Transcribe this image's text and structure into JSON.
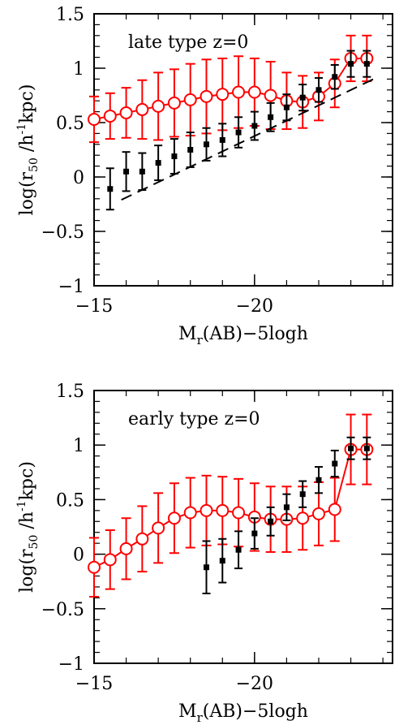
{
  "chart_data": [
    {
      "type": "line",
      "annotation": "late type   z=0",
      "xlabel_main": "M",
      "xlabel_sub": "r",
      "xlabel_rest": "(AB)−5logh",
      "ylabel_pre": "log(r",
      "ylabel_sub": "50",
      "ylabel_post": " /h",
      "ylabel_sup": "-1",
      "ylabel_end": "kpc)",
      "xlim": [
        -15,
        -24.3
      ],
      "ylim": [
        -1,
        1.5
      ],
      "xticks": [
        -15,
        -20
      ],
      "xtick_labels": [
        "−15",
        "−20"
      ],
      "yticks": [
        -1,
        -0.5,
        0,
        0.5,
        1,
        1.5
      ],
      "ytick_labels": [
        "−1",
        "−0.5",
        "0",
        "0.5",
        "1",
        "1.5"
      ],
      "series": [
        {
          "style": "red-circles-line",
          "color": "#ff0000",
          "x": [
            -15.0,
            -15.5,
            -16.0,
            -16.5,
            -17.0,
            -17.5,
            -18.0,
            -18.5,
            -19.0,
            -19.5,
            -20.0,
            -20.5,
            -21.0,
            -21.5,
            -22.0,
            -22.5,
            -23.0,
            -23.5
          ],
          "y": [
            0.53,
            0.56,
            0.59,
            0.62,
            0.65,
            0.68,
            0.71,
            0.74,
            0.76,
            0.78,
            0.78,
            0.75,
            0.7,
            0.69,
            0.74,
            0.86,
            1.09,
            1.09
          ],
          "err": [
            0.21,
            0.21,
            0.23,
            0.27,
            0.31,
            0.31,
            0.33,
            0.34,
            0.33,
            0.33,
            0.31,
            0.31,
            0.26,
            0.24,
            0.22,
            0.22,
            0.21,
            0.21
          ]
        },
        {
          "style": "black-squares",
          "color": "#000000",
          "x": [
            -15.5,
            -16.0,
            -16.5,
            -17.0,
            -17.5,
            -18.0,
            -18.5,
            -19.0,
            -19.5,
            -20.0,
            -20.5,
            -21.0,
            -21.5,
            -22.0,
            -22.5,
            -23.0,
            -23.5
          ],
          "y": [
            -0.11,
            0.05,
            0.05,
            0.13,
            0.19,
            0.25,
            0.3,
            0.34,
            0.41,
            0.47,
            0.55,
            0.64,
            0.73,
            0.8,
            0.92,
            1.04,
            1.04
          ],
          "err": [
            0.19,
            0.18,
            0.17,
            0.16,
            0.16,
            0.16,
            0.15,
            0.15,
            0.14,
            0.13,
            0.13,
            0.12,
            0.12,
            0.11,
            0.11,
            0.12,
            0.12
          ]
        },
        {
          "style": "black-dashed",
          "color": "#000000",
          "x": [
            -15.85,
            -23.85
          ],
          "y": [
            -0.21,
            0.92
          ]
        }
      ]
    },
    {
      "type": "line",
      "annotation": "early type   z=0",
      "xlabel_main": "M",
      "xlabel_sub": "r",
      "xlabel_rest": "(AB)−5logh",
      "ylabel_pre": "log(r",
      "ylabel_sub": "50",
      "ylabel_post": " /h",
      "ylabel_sup": "-1",
      "ylabel_end": "kpc)",
      "xlim": [
        -15,
        -24.3
      ],
      "ylim": [
        -1,
        1.5
      ],
      "xticks": [
        -15,
        -20
      ],
      "xtick_labels": [
        "−15",
        "−20"
      ],
      "yticks": [
        -1,
        -0.5,
        0,
        0.5,
        1,
        1.5
      ],
      "ytick_labels": [
        "−1",
        "−0.5",
        "0",
        "0.5",
        "1",
        "1.5"
      ],
      "series": [
        {
          "style": "red-circles-line",
          "color": "#ff0000",
          "x": [
            -15.0,
            -15.5,
            -16.0,
            -16.5,
            -17.0,
            -17.5,
            -18.0,
            -18.5,
            -19.0,
            -19.5,
            -20.0,
            -20.5,
            -21.0,
            -21.5,
            -22.0,
            -22.5,
            -23.0,
            -23.5
          ],
          "y": [
            -0.12,
            -0.05,
            0.05,
            0.14,
            0.24,
            0.33,
            0.38,
            0.4,
            0.4,
            0.38,
            0.34,
            0.32,
            0.32,
            0.33,
            0.37,
            0.41,
            0.96,
            0.96
          ],
          "err": [
            0.27,
            0.27,
            0.28,
            0.3,
            0.32,
            0.32,
            0.32,
            0.32,
            0.31,
            0.31,
            0.31,
            0.3,
            0.3,
            0.29,
            0.29,
            0.29,
            0.32,
            0.32
          ]
        },
        {
          "style": "black-squares",
          "color": "#000000",
          "x": [
            -18.5,
            -19.0,
            -19.5,
            -20.0,
            -20.5,
            -21.0,
            -21.5,
            -22.0,
            -22.5,
            -23.0,
            -23.5
          ],
          "y": [
            -0.12,
            -0.06,
            0.04,
            0.19,
            0.3,
            0.43,
            0.55,
            0.68,
            0.83,
            0.97,
            0.97
          ],
          "err": [
            0.24,
            0.2,
            0.17,
            0.14,
            0.13,
            0.12,
            0.12,
            0.12,
            0.12,
            0.1,
            0.1
          ]
        }
      ]
    }
  ]
}
